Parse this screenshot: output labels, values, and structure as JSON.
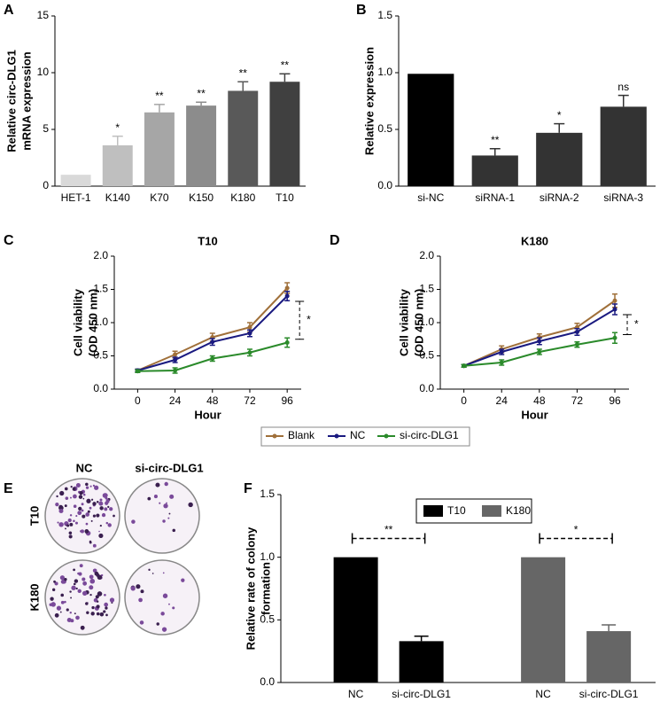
{
  "chart_data": [
    {
      "type": "bar",
      "panel": "A",
      "ylabel": [
        "Relative circ-DLG1",
        "mRNA expression"
      ],
      "categories": [
        "HET-1",
        "K140",
        "K70",
        "K150",
        "K180",
        "T10"
      ],
      "values": [
        1,
        3.6,
        6.5,
        7.1,
        8.4,
        9.2
      ],
      "errors": [
        0,
        0.8,
        0.7,
        0.3,
        0.8,
        0.7
      ],
      "annotations": [
        null,
        "*",
        "**",
        "**",
        "**",
        "**"
      ],
      "colors": [
        "#d9d9d9",
        "#bfbfbf",
        "#a6a6a6",
        "#8c8c8c",
        "#595959",
        "#404040"
      ],
      "ylim": [
        0,
        15
      ],
      "yticks": [
        0,
        5,
        10,
        15
      ]
    },
    {
      "type": "bar",
      "panel": "B",
      "ylabel": [
        "Relative expression"
      ],
      "categories": [
        "si-NC",
        "siRNA-1",
        "siRNA-2",
        "siRNA-3"
      ],
      "values": [
        0.99,
        0.27,
        0.47,
        0.7
      ],
      "errors": [
        0,
        0.06,
        0.08,
        0.1
      ],
      "annotations": [
        null,
        "**",
        "*",
        "ns"
      ],
      "colors": [
        "#000000",
        "#333333",
        "#333333",
        "#333333"
      ],
      "ylim": [
        0,
        1.5
      ],
      "yticks": [
        {
          "value": 0,
          "label": "0.0"
        },
        0.5,
        {
          "value": 1,
          "label": "1.0"
        },
        1.5
      ]
    },
    {
      "type": "line",
      "panel": "C",
      "title": "T10",
      "ylabel": [
        "Cell viability",
        "(OD 450 nm)"
      ],
      "xlabel": "Hour",
      "x": [
        0,
        24,
        48,
        72,
        96
      ],
      "xlim": [
        -15,
        105
      ],
      "xticks": [
        0,
        24,
        48,
        72,
        96
      ],
      "ylim": [
        0,
        2
      ],
      "yticks": [
        {
          "value": 0,
          "label": "0.0"
        },
        0.5,
        {
          "value": 1,
          "label": "1.0"
        },
        1.5,
        {
          "value": 2,
          "label": "2.0"
        }
      ],
      "annotation": "*",
      "series": [
        {
          "name": "Blank",
          "color": "#a0703a",
          "values": [
            0.28,
            0.52,
            0.78,
            0.93,
            1.52
          ],
          "errors": [
            0.02,
            0.05,
            0.06,
            0.07,
            0.08
          ]
        },
        {
          "name": "NC",
          "color": "#1a1a80",
          "values": [
            0.28,
            0.44,
            0.71,
            0.84,
            1.4
          ],
          "errors": [
            0.02,
            0.04,
            0.05,
            0.05,
            0.07
          ]
        },
        {
          "name": "si-circ-DLG1",
          "color": "#2a8a2a",
          "values": [
            0.27,
            0.28,
            0.46,
            0.55,
            0.7
          ],
          "errors": [
            0.02,
            0.04,
            0.04,
            0.05,
            0.07
          ]
        }
      ]
    },
    {
      "type": "line",
      "panel": "D",
      "title": "K180",
      "ylabel": [
        "Cell viability",
        "(OD 450 nm)"
      ],
      "xlabel": "Hour",
      "x": [
        0,
        24,
        48,
        72,
        96
      ],
      "xlim": [
        -15,
        105
      ],
      "xticks": [
        0,
        24,
        48,
        72,
        96
      ],
      "ylim": [
        0,
        2
      ],
      "yticks": [
        {
          "value": 0,
          "label": "0.0"
        },
        0.5,
        {
          "value": 1,
          "label": "1.0"
        },
        1.5,
        {
          "value": 2,
          "label": "2.0"
        }
      ],
      "annotation": "*",
      "series": [
        {
          "name": "Blank",
          "color": "#a0703a",
          "values": [
            0.35,
            0.6,
            0.78,
            0.93,
            1.33
          ],
          "errors": [
            0.02,
            0.05,
            0.05,
            0.06,
            0.1
          ]
        },
        {
          "name": "NC",
          "color": "#1a1a80",
          "values": [
            0.35,
            0.56,
            0.72,
            0.86,
            1.2
          ],
          "errors": [
            0.02,
            0.04,
            0.05,
            0.05,
            0.08
          ]
        },
        {
          "name": "si-circ-DLG1",
          "color": "#2a8a2a",
          "values": [
            0.35,
            0.4,
            0.56,
            0.67,
            0.77
          ],
          "errors": [
            0.02,
            0.04,
            0.04,
            0.04,
            0.08
          ]
        }
      ]
    },
    {
      "type": "image",
      "panel": "E",
      "columns": [
        "NC",
        "si-circ-DLG1"
      ],
      "rows": [
        "T10",
        "K180"
      ]
    },
    {
      "type": "bar",
      "panel": "F",
      "ylabel": [
        "Relative rate of colony",
        "formation"
      ],
      "categories": [
        "NC",
        "si-circ-DLG1"
      ],
      "ylim": [
        0,
        1.5
      ],
      "yticks": [
        {
          "value": 0,
          "label": "0.0"
        },
        0.5,
        {
          "value": 1,
          "label": "1.0"
        },
        1.5
      ],
      "series": [
        {
          "name": "T10",
          "color": "#000000",
          "values": [
            1,
            0.33
          ],
          "errors": [
            0,
            0.04
          ],
          "annotation": "**"
        },
        {
          "name": "K180",
          "color": "#666666",
          "values": [
            1,
            0.41
          ],
          "errors": [
            0,
            0.05
          ],
          "annotation": "*"
        }
      ]
    }
  ]
}
